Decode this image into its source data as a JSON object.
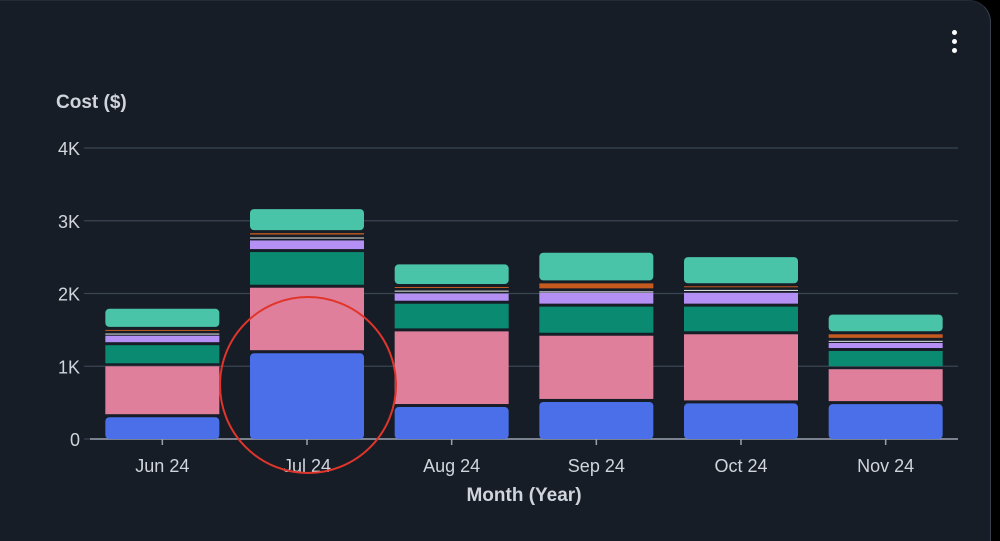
{
  "menu": {
    "icon": "more-vertical-icon"
  },
  "chart_data": {
    "type": "bar",
    "stacked": true,
    "title": "",
    "xlabel": "Month (Year)",
    "ylabel": "Cost ($)",
    "ylim": [
      0,
      4000
    ],
    "ytick_labels": [
      "0",
      "1K",
      "2K",
      "3K",
      "4K"
    ],
    "yticks": [
      0,
      1000,
      2000,
      3000,
      4000
    ],
    "grid": true,
    "legend": "none",
    "categories": [
      "Jun 24",
      "Jul 24",
      "Aug 24",
      "Sep 24",
      "Oct 24",
      "Nov 24"
    ],
    "series": [
      {
        "color": "#4a6fe8",
        "values": [
          320,
          1200,
          460,
          530,
          510,
          500
        ]
      },
      {
        "color": "#e07f9b",
        "values": [
          700,
          900,
          1040,
          910,
          950,
          480
        ]
      },
      {
        "color": "#0b8a72",
        "values": [
          290,
          490,
          380,
          400,
          380,
          250
        ]
      },
      {
        "color": "#b490f5",
        "values": [
          130,
          160,
          140,
          190,
          190,
          110
        ]
      },
      {
        "color": "#e8e8e8",
        "values": [
          30,
          40,
          40,
          20,
          40,
          30
        ]
      },
      {
        "color": "#c55a20",
        "values": [
          50,
          60,
          50,
          110,
          50,
          90
        ]
      },
      {
        "color": "#4ac4a8",
        "values": [
          270,
          310,
          290,
          400,
          380,
          250
        ]
      }
    ],
    "annotation": {
      "type": "circle",
      "category": "Jul 24",
      "color": "#e0352b"
    },
    "colors": {
      "background": "#161d26",
      "grid": "#3b4453",
      "tick_text": "#d1d5db",
      "gap": "#161d26"
    }
  }
}
